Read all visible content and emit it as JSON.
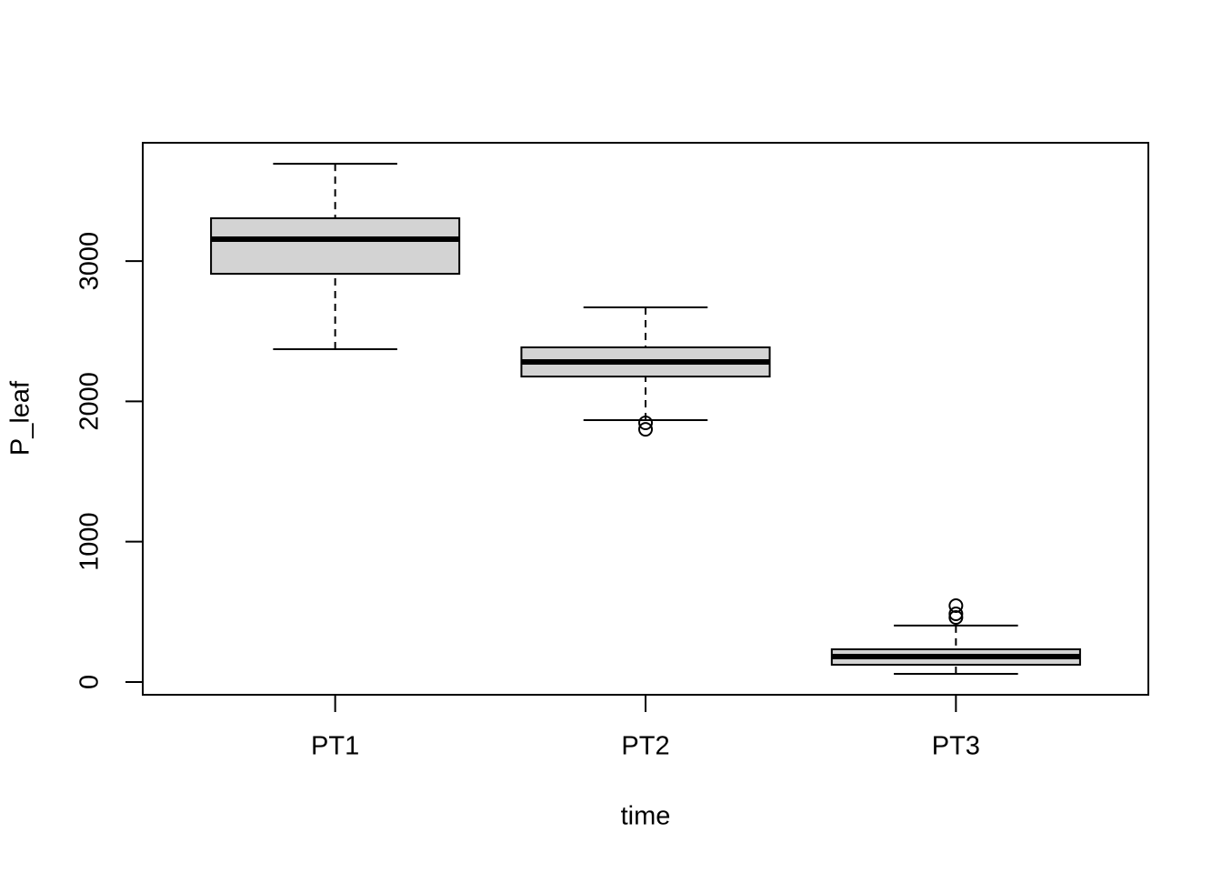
{
  "chart_data": {
    "type": "box",
    "x_label": "time",
    "y_label": "P_leaf",
    "categories": [
      "PT1",
      "PT2",
      "PT3"
    ],
    "min": [
      2372,
      1866,
      58
    ],
    "q1": [
      2909,
      2177,
      123
    ],
    "median": [
      3156,
      2281,
      181
    ],
    "q3": [
      3305,
      2385,
      233
    ],
    "max": [
      3693,
      2670,
      402
    ],
    "outliers": [
      [],
      [
        1847,
        1801
      ],
      [
        544,
        486,
        460
      ]
    ],
    "color": "#d3d3d3",
    "ylim": [
      -91,
      3843
    ],
    "yticks": [
      0,
      1000,
      2000,
      3000
    ]
  }
}
